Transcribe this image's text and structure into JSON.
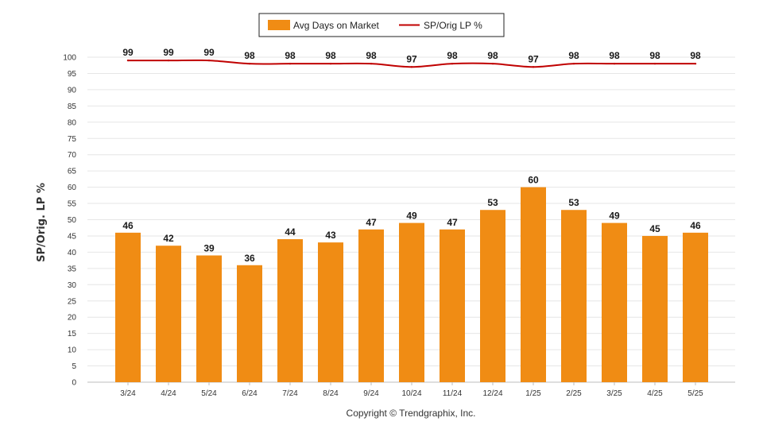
{
  "chart_data": {
    "type": "bar",
    "categories": [
      "3/24",
      "4/24",
      "5/24",
      "6/24",
      "7/24",
      "8/24",
      "9/24",
      "10/24",
      "11/24",
      "12/24",
      "1/25",
      "2/25",
      "3/25",
      "4/25",
      "5/25"
    ],
    "series": [
      {
        "name": "Avg Days on Market",
        "type": "bar",
        "color": "#f08c14",
        "values": [
          46,
          42,
          39,
          36,
          44,
          43,
          47,
          49,
          47,
          53,
          60,
          53,
          49,
          45,
          46
        ]
      },
      {
        "name": "SP/Orig LP %",
        "type": "line",
        "color": "#c00000",
        "values": [
          99,
          99,
          99,
          98,
          98,
          98,
          98,
          97,
          98,
          98,
          97,
          98,
          98,
          98,
          98
        ]
      }
    ],
    "ylabel": "SP/Orig. LP %",
    "ylim": [
      0,
      100
    ],
    "yticks": [
      0,
      5,
      10,
      15,
      20,
      25,
      30,
      35,
      40,
      45,
      50,
      55,
      60,
      65,
      70,
      75,
      80,
      85,
      90,
      95,
      100
    ],
    "grid": true,
    "legend": "top-center"
  },
  "footer": {
    "copyright": "Copyright © Trendgraphix, Inc."
  }
}
